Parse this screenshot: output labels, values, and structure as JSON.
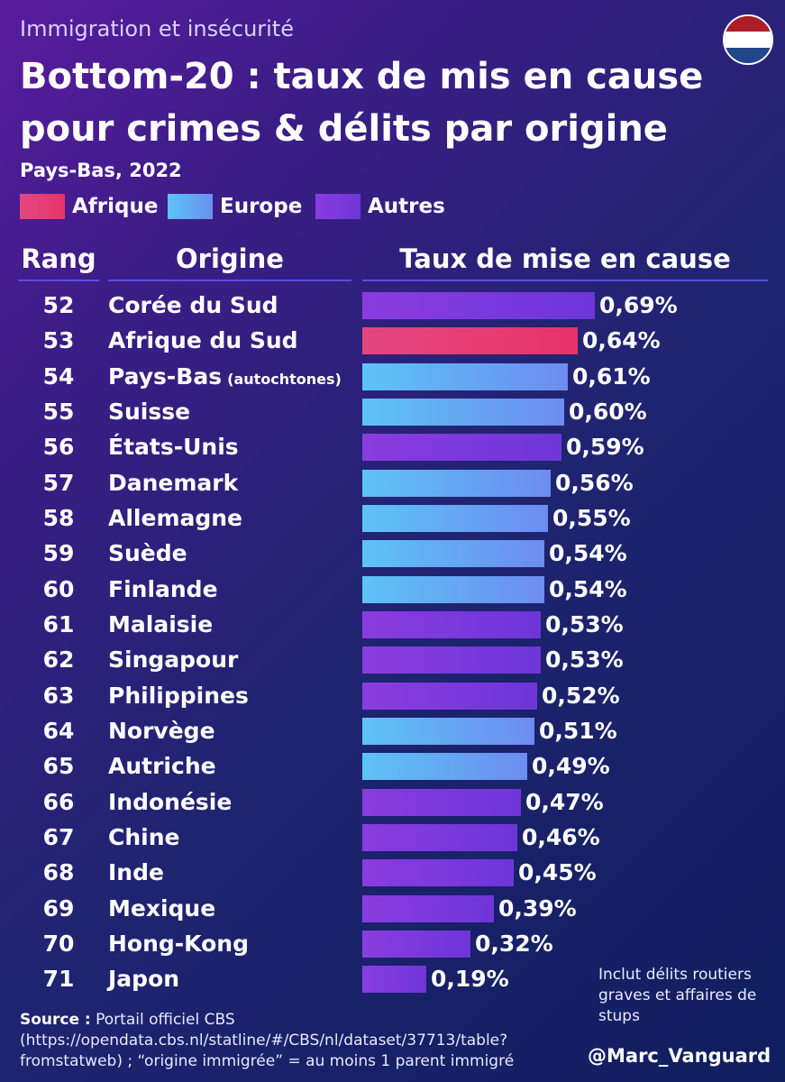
{
  "header": {
    "kicker": "Immigration et insécurité",
    "title_line1": "Bottom-20 : taux de mis en cause",
    "title_line2": "pour crimes & délits par origine",
    "subtitle": "Pays-Bas, 2022"
  },
  "legend": [
    {
      "label": "Afrique",
      "color": "#e8336b"
    },
    {
      "label": "Europe",
      "color": "#63b8f5"
    },
    {
      "label": "Autres",
      "color": "#7a3be0"
    }
  ],
  "columns": {
    "rank": "Rang",
    "origin": "Origine",
    "rate": "Taux de mise en cause"
  },
  "chart_data": {
    "type": "bar",
    "orientation": "horizontal",
    "title": "Bottom-20 : taux de mis en cause pour crimes & délits par origine",
    "unit": "%",
    "rows": [
      {
        "rank": "52",
        "origin": "Corée du Sud",
        "note": "",
        "value": 0.69,
        "label": "0,69%",
        "group": "Autres"
      },
      {
        "rank": "53",
        "origin": "Afrique du Sud",
        "note": "",
        "value": 0.64,
        "label": "0,64%",
        "group": "Afrique"
      },
      {
        "rank": "54",
        "origin": "Pays-Bas",
        "note": "(autochtones)",
        "value": 0.61,
        "label": "0,61%",
        "group": "Europe"
      },
      {
        "rank": "55",
        "origin": "Suisse",
        "note": "",
        "value": 0.6,
        "label": "0,60%",
        "group": "Europe"
      },
      {
        "rank": "56",
        "origin": "États-Unis",
        "note": "",
        "value": 0.59,
        "label": "0,59%",
        "group": "Autres"
      },
      {
        "rank": "57",
        "origin": "Danemark",
        "note": "",
        "value": 0.56,
        "label": "0,56%",
        "group": "Europe"
      },
      {
        "rank": "58",
        "origin": "Allemagne",
        "note": "",
        "value": 0.55,
        "label": "0,55%",
        "group": "Europe"
      },
      {
        "rank": "59",
        "origin": "Suède",
        "note": "",
        "value": 0.54,
        "label": "0,54%",
        "group": "Europe"
      },
      {
        "rank": "60",
        "origin": "Finlande",
        "note": "",
        "value": 0.54,
        "label": "0,54%",
        "group": "Europe"
      },
      {
        "rank": "61",
        "origin": "Malaisie",
        "note": "",
        "value": 0.53,
        "label": "0,53%",
        "group": "Autres"
      },
      {
        "rank": "62",
        "origin": "Singapour",
        "note": "",
        "value": 0.53,
        "label": "0,53%",
        "group": "Autres"
      },
      {
        "rank": "63",
        "origin": "Philippines",
        "note": "",
        "value": 0.52,
        "label": "0,52%",
        "group": "Autres"
      },
      {
        "rank": "64",
        "origin": "Norvège",
        "note": "",
        "value": 0.51,
        "label": "0,51%",
        "group": "Europe"
      },
      {
        "rank": "65",
        "origin": "Autriche",
        "note": "",
        "value": 0.49,
        "label": "0,49%",
        "group": "Europe"
      },
      {
        "rank": "66",
        "origin": "Indonésie",
        "note": "",
        "value": 0.47,
        "label": "0,47%",
        "group": "Autres"
      },
      {
        "rank": "67",
        "origin": "Chine",
        "note": "",
        "value": 0.46,
        "label": "0,46%",
        "group": "Autres"
      },
      {
        "rank": "68",
        "origin": "Inde",
        "note": "",
        "value": 0.45,
        "label": "0,45%",
        "group": "Autres"
      },
      {
        "rank": "69",
        "origin": "Mexique",
        "note": "",
        "value": 0.39,
        "label": "0,39%",
        "group": "Autres"
      },
      {
        "rank": "70",
        "origin": "Hong-Kong",
        "note": "",
        "value": 0.32,
        "label": "0,32%",
        "group": "Autres"
      },
      {
        "rank": "71",
        "origin": "Japon",
        "note": "",
        "value": 0.19,
        "label": "0,19%",
        "group": "Autres"
      }
    ]
  },
  "footer": {
    "note": "Inclut délits routiers graves et affaires de stups",
    "source_label": "Source :",
    "source_text": "Portail officiel CBS (https://opendata.cbs.nl/statline/#/CBS/nl/dataset/37713/table?fromstatweb) ; “origine immigrée” = au moins 1 parent immigré",
    "handle": "@Marc_Vanguard"
  },
  "flag": {
    "name": "netherlands-flag-icon",
    "colors": [
      "#ae1c28",
      "#ffffff",
      "#21468b"
    ]
  }
}
